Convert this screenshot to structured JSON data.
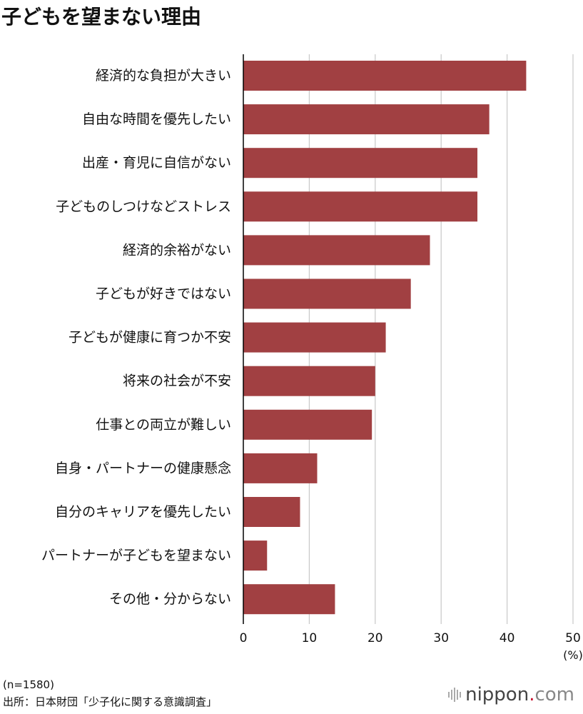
{
  "title": "子どもを望まない理由",
  "notes": {
    "sample": "(n=1580)",
    "source": "出所：日本財団「少子化に関する意識調査」"
  },
  "logo": {
    "main": "nippon",
    "dot": ".",
    "suffix": "com"
  },
  "colors": {
    "bar": "#A14042",
    "grid": "#c8c8c8",
    "axis": "#000000"
  },
  "chart_data": {
    "type": "bar",
    "orientation": "horizontal",
    "title": "子どもを望まない理由",
    "categories": [
      "経済的な負担が大きい",
      "自由な時間を優先したい",
      "出産・育児に自信がない",
      "子どものしつけなどストレス",
      "経済的余裕がない",
      "子どもが好きではない",
      "子どもが健康に育つか不安",
      "将来の社会が不安",
      "仕事との両立が難しい",
      "自身・パートナーの健康懸念",
      "自分のキャリアを優先したい",
      "パートナーが子どもを望まない",
      "その他・分からない"
    ],
    "values": [
      42.9,
      37.3,
      35.5,
      35.5,
      28.3,
      25.4,
      21.6,
      20.0,
      19.5,
      11.2,
      8.6,
      3.6,
      13.9
    ],
    "xlim": [
      0,
      50
    ],
    "xticks": [
      0,
      10,
      20,
      30,
      40,
      50
    ],
    "xunit": "(%)",
    "grid": true,
    "legend": "none"
  }
}
